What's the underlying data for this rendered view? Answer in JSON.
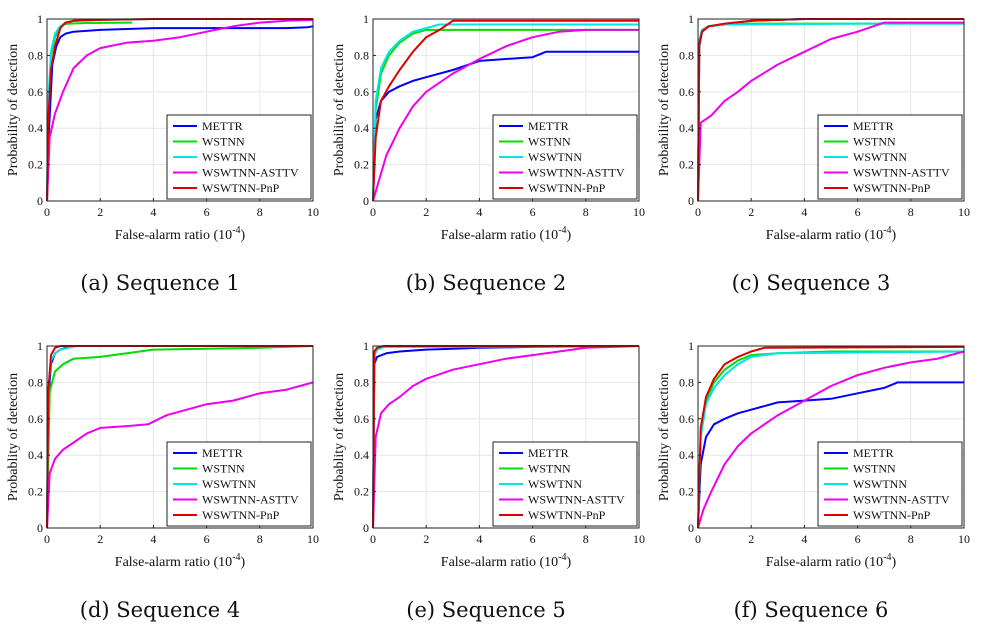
{
  "chart_data": [
    {
      "type": "line",
      "caption": "(a) Sequence 1",
      "xlabel": "False-alarm ratio (10",
      "xlabel_sup": "-4",
      "xlabel_end": ")",
      "ylabel": "Probability of detection",
      "xlim": [
        0,
        10
      ],
      "ylim": [
        0,
        1
      ],
      "xticks": [
        "0",
        "2",
        "4",
        "6",
        "8",
        "10"
      ],
      "yticks": [
        "0",
        "0.2",
        "0.4",
        "0.6",
        "0.8",
        "1"
      ],
      "grid": true,
      "legend": "bottom-right",
      "series": [
        {
          "name": "METTR",
          "color": "#0000ff",
          "x": [
            0,
            0.08,
            0.2,
            0.35,
            0.5,
            0.7,
            1,
            2,
            3,
            4,
            6,
            8,
            9,
            9.8,
            10
          ],
          "y": [
            0,
            0.4,
            0.75,
            0.85,
            0.9,
            0.92,
            0.93,
            0.94,
            0.945,
            0.95,
            0.95,
            0.95,
            0.95,
            0.955,
            0.96
          ]
        },
        {
          "name": "WSTNN",
          "color": "#00dd00",
          "x": [
            0,
            0.05,
            0.15,
            0.3,
            0.45,
            0.6,
            0.8,
            1.5,
            3.2
          ],
          "y": [
            0,
            0.5,
            0.8,
            0.9,
            0.95,
            0.97,
            0.975,
            0.978,
            0.98
          ]
        },
        {
          "name": "WSWTNN",
          "color": "#00e5e5",
          "x": [
            0,
            0.05,
            0.15,
            0.3,
            0.5,
            0.7,
            1,
            2,
            4,
            6,
            10
          ],
          "y": [
            0,
            0.55,
            0.82,
            0.92,
            0.96,
            0.98,
            0.99,
            0.995,
            1,
            1,
            1
          ]
        },
        {
          "name": "WSWTNN-ASTTV",
          "color": "#ee00ee",
          "x": [
            0,
            0.1,
            0.3,
            0.6,
            1,
            1.5,
            2,
            3,
            4,
            5,
            6,
            7,
            8,
            9,
            10
          ],
          "y": [
            0,
            0.35,
            0.48,
            0.6,
            0.73,
            0.8,
            0.84,
            0.87,
            0.88,
            0.9,
            0.93,
            0.96,
            0.98,
            0.99,
            0.995
          ]
        },
        {
          "name": "WSWTNN-PnP",
          "color": "#dd0000",
          "x": [
            0,
            0.05,
            0.15,
            0.3,
            0.5,
            0.7,
            1,
            2,
            4,
            10
          ],
          "y": [
            0,
            0.45,
            0.72,
            0.85,
            0.95,
            0.98,
            0.99,
            0.995,
            1,
            1
          ]
        }
      ]
    },
    {
      "type": "line",
      "caption": "(b) Sequence 2",
      "xlabel": "False-alarm ratio (10",
      "xlabel_sup": "-4",
      "xlabel_end": ")",
      "ylabel": "Probability of detection",
      "xlim": [
        0,
        10
      ],
      "ylim": [
        0,
        1
      ],
      "xticks": [
        "0",
        "2",
        "4",
        "6",
        "8",
        "10"
      ],
      "yticks": [
        "0",
        "0.2",
        "0.4",
        "0.6",
        "0.8",
        "1"
      ],
      "grid": true,
      "legend": "bottom-right",
      "series": [
        {
          "name": "METTR",
          "color": "#0000ff",
          "x": [
            0,
            0.1,
            0.3,
            0.6,
            1,
            1.5,
            2,
            3,
            4,
            5,
            6,
            6.5,
            10
          ],
          "y": [
            0,
            0.45,
            0.55,
            0.6,
            0.63,
            0.66,
            0.68,
            0.72,
            0.77,
            0.78,
            0.79,
            0.82,
            0.82
          ]
        },
        {
          "name": "WSTNN",
          "color": "#00dd00",
          "x": [
            0,
            0.1,
            0.3,
            0.6,
            1,
            1.5,
            2,
            10
          ],
          "y": [
            0,
            0.5,
            0.7,
            0.8,
            0.87,
            0.92,
            0.94,
            0.94
          ]
        },
        {
          "name": "WSWTNN",
          "color": "#00e5e5",
          "x": [
            0,
            0.1,
            0.3,
            0.6,
            1,
            1.5,
            2,
            2.5,
            10
          ],
          "y": [
            0,
            0.55,
            0.73,
            0.82,
            0.88,
            0.93,
            0.95,
            0.97,
            0.97
          ]
        },
        {
          "name": "WSWTNN-ASTTV",
          "color": "#ee00ee",
          "x": [
            0,
            0.2,
            0.5,
            1,
            1.5,
            2,
            3,
            4,
            5,
            6,
            7,
            8,
            10
          ],
          "y": [
            0,
            0.1,
            0.25,
            0.4,
            0.52,
            0.6,
            0.7,
            0.78,
            0.85,
            0.9,
            0.93,
            0.94,
            0.94
          ]
        },
        {
          "name": "WSWTNN-PnP",
          "color": "#dd0000",
          "x": [
            0,
            0.1,
            0.3,
            0.6,
            1,
            1.5,
            2,
            2.5,
            3,
            10
          ],
          "y": [
            0,
            0.35,
            0.55,
            0.63,
            0.72,
            0.82,
            0.9,
            0.94,
            0.99,
            0.99
          ]
        }
      ]
    },
    {
      "type": "line",
      "caption": "(c) Sequence 3",
      "xlabel": "False-alarm ratio (10",
      "xlabel_sup": "-4",
      "xlabel_end": ")",
      "ylabel": "Probability of detection",
      "xlim": [
        0,
        10
      ],
      "ylim": [
        0,
        1
      ],
      "xticks": [
        "0",
        "2",
        "4",
        "6",
        "8",
        "10"
      ],
      "yticks": [
        "0",
        "0.2",
        "0.4",
        "0.6",
        "0.8",
        "1"
      ],
      "grid": true,
      "legend": "bottom-right",
      "series": [
        {
          "name": "METTR",
          "color": "#0000ff",
          "x": [
            0,
            0.05,
            0.15,
            0.4,
            1,
            2,
            4,
            10
          ],
          "y": [
            0,
            0.85,
            0.93,
            0.96,
            0.97,
            0.99,
            1,
            1
          ]
        },
        {
          "name": "WSTNN",
          "color": "#00dd00",
          "x": [
            0,
            0.05,
            0.15,
            0.4,
            1,
            2,
            10
          ],
          "y": [
            0,
            0.88,
            0.94,
            0.96,
            0.97,
            0.975,
            0.975
          ]
        },
        {
          "name": "WSWTNN",
          "color": "#00e5e5",
          "x": [
            0,
            0.05,
            0.15,
            0.4,
            1,
            2,
            6,
            10
          ],
          "y": [
            0,
            0.88,
            0.94,
            0.96,
            0.97,
            0.97,
            0.975,
            0.975
          ]
        },
        {
          "name": "WSWTNN-ASTTV",
          "color": "#ee00ee",
          "x": [
            0,
            0.1,
            0.5,
            1,
            1.5,
            2,
            3,
            4,
            5,
            6,
            7,
            10
          ],
          "y": [
            0,
            0.43,
            0.47,
            0.55,
            0.6,
            0.66,
            0.75,
            0.82,
            0.89,
            0.93,
            0.98,
            0.98
          ]
        },
        {
          "name": "WSWTNN-PnP",
          "color": "#dd0000",
          "x": [
            0,
            0.05,
            0.15,
            0.4,
            1,
            2,
            4,
            10
          ],
          "y": [
            0,
            0.86,
            0.93,
            0.96,
            0.975,
            0.99,
            1,
            1
          ]
        }
      ]
    },
    {
      "type": "line",
      "caption": "(d) Sequence 4",
      "xlabel": "False-alarm ratio (10",
      "xlabel_sup": "-4",
      "xlabel_end": ")",
      "ylabel": "Probablity of detection",
      "xlim": [
        0,
        10
      ],
      "ylim": [
        0,
        1
      ],
      "xticks": [
        "0",
        "2",
        "4",
        "6",
        "8",
        "10"
      ],
      "yticks": [
        "0",
        "0.2",
        "0.4",
        "0.6",
        "0.8",
        "1"
      ],
      "grid": true,
      "legend": "bottom-right",
      "series": [
        {
          "name": "METTR",
          "color": "#0000ff",
          "x": [
            0,
            0.05,
            0.15,
            0.3,
            0.5,
            0.7,
            1,
            10
          ],
          "y": [
            0,
            0.7,
            0.9,
            0.96,
            0.98,
            0.99,
            1,
            1
          ]
        },
        {
          "name": "WSTNN",
          "color": "#00dd00",
          "x": [
            0,
            0.1,
            0.3,
            0.6,
            1,
            2,
            3,
            4,
            6,
            8,
            10
          ],
          "y": [
            0,
            0.75,
            0.86,
            0.9,
            0.93,
            0.94,
            0.96,
            0.98,
            0.985,
            0.99,
            1
          ]
        },
        {
          "name": "WSWTNN",
          "color": "#00e5e5",
          "x": [
            0,
            0.05,
            0.15,
            0.3,
            0.5,
            0.8,
            1.1
          ],
          "y": [
            0,
            0.75,
            0.92,
            0.96,
            0.98,
            0.99,
            1
          ]
        },
        {
          "name": "WSWTNN-ASTTV",
          "color": "#ee00ee",
          "x": [
            0,
            0.1,
            0.3,
            0.6,
            1,
            1.5,
            2,
            3,
            3.8,
            4.5,
            6,
            7,
            8,
            9,
            10
          ],
          "y": [
            0,
            0.3,
            0.38,
            0.43,
            0.47,
            0.52,
            0.55,
            0.56,
            0.57,
            0.62,
            0.68,
            0.7,
            0.74,
            0.76,
            0.8
          ]
        },
        {
          "name": "WSWTNN-PnP",
          "color": "#dd0000",
          "x": [
            0,
            0.05,
            0.15,
            0.3,
            0.5,
            1,
            10
          ],
          "y": [
            0,
            0.75,
            0.95,
            0.99,
            1,
            1,
            1
          ]
        }
      ]
    },
    {
      "type": "line",
      "caption": "(e) Sequence 5",
      "xlabel": "False-alarm ratio (10",
      "xlabel_sup": "-4",
      "xlabel_end": ")",
      "ylabel": "Probablity of detection",
      "xlim": [
        0,
        10
      ],
      "ylim": [
        0,
        1
      ],
      "xticks": [
        "0",
        "2",
        "4",
        "6",
        "8",
        "10"
      ],
      "yticks": [
        "0",
        "0.2",
        "0.4",
        "0.6",
        "0.8",
        "1"
      ],
      "grid": true,
      "legend": "bottom-right",
      "series": [
        {
          "name": "METTR",
          "color": "#0000ff",
          "x": [
            0,
            0.05,
            0.15,
            0.5,
            1,
            2,
            3,
            4,
            6,
            10
          ],
          "y": [
            0,
            0.9,
            0.94,
            0.96,
            0.97,
            0.98,
            0.985,
            0.99,
            0.995,
            1
          ]
        },
        {
          "name": "WSTNN",
          "color": "#00dd00",
          "x": [
            0,
            0.05,
            0.15,
            0.4,
            10
          ],
          "y": [
            0,
            0.95,
            0.98,
            0.995,
            1
          ]
        },
        {
          "name": "WSWTNN",
          "color": "#00e5e5",
          "x": [
            0,
            0.05,
            0.15,
            0.4,
            10
          ],
          "y": [
            0,
            0.95,
            0.98,
            0.995,
            1
          ]
        },
        {
          "name": "WSWTNN-ASTTV",
          "color": "#ee00ee",
          "x": [
            0,
            0.1,
            0.3,
            0.6,
            1,
            1.5,
            2,
            3,
            4,
            5,
            6,
            7,
            8,
            10
          ],
          "y": [
            0,
            0.5,
            0.63,
            0.68,
            0.72,
            0.78,
            0.82,
            0.87,
            0.9,
            0.93,
            0.95,
            0.97,
            0.99,
            1
          ]
        },
        {
          "name": "WSWTNN-PnP",
          "color": "#dd0000",
          "x": [
            0,
            0.05,
            0.15,
            0.4,
            10
          ],
          "y": [
            0,
            0.97,
            0.99,
            1,
            1
          ]
        }
      ]
    },
    {
      "type": "line",
      "caption": "(f) Sequence 6",
      "xlabel": "False-alarm ratio (10",
      "xlabel_sup": "-4",
      "xlabel_end": ")",
      "ylabel": "Probablity of detection",
      "xlim": [
        0,
        10
      ],
      "ylim": [
        0,
        1
      ],
      "xticks": [
        "0",
        "2",
        "4",
        "6",
        "8",
        "10"
      ],
      "yticks": [
        "0",
        "0.2",
        "0.4",
        "0.6",
        "0.8",
        "1"
      ],
      "grid": true,
      "legend": "bottom-right",
      "series": [
        {
          "name": "METTR",
          "color": "#0000ff",
          "x": [
            0,
            0.1,
            0.3,
            0.6,
            1,
            1.5,
            2,
            3,
            4,
            5,
            6,
            7,
            7.5,
            10
          ],
          "y": [
            0,
            0.35,
            0.5,
            0.57,
            0.6,
            0.63,
            0.65,
            0.69,
            0.7,
            0.71,
            0.74,
            0.77,
            0.8,
            0.8
          ]
        },
        {
          "name": "WSTNN",
          "color": "#00dd00",
          "x": [
            0,
            0.1,
            0.3,
            0.6,
            1,
            1.5,
            2,
            3,
            5,
            10
          ],
          "y": [
            0,
            0.5,
            0.7,
            0.8,
            0.87,
            0.92,
            0.95,
            0.96,
            0.97,
            0.97
          ]
        },
        {
          "name": "WSWTNN",
          "color": "#00e5e5",
          "x": [
            0,
            0.1,
            0.3,
            0.6,
            1,
            1.5,
            2,
            3,
            10
          ],
          "y": [
            0,
            0.5,
            0.68,
            0.77,
            0.84,
            0.9,
            0.94,
            0.96,
            0.97
          ]
        },
        {
          "name": "WSWTNN-ASTTV",
          "color": "#ee00ee",
          "x": [
            0,
            0.2,
            0.5,
            1,
            1.5,
            2,
            3,
            4,
            5,
            6,
            7,
            8,
            9,
            10
          ],
          "y": [
            0,
            0.1,
            0.2,
            0.35,
            0.45,
            0.52,
            0.62,
            0.7,
            0.78,
            0.84,
            0.88,
            0.91,
            0.93,
            0.97
          ]
        },
        {
          "name": "WSWTNN-PnP",
          "color": "#dd0000",
          "x": [
            0,
            0.1,
            0.3,
            0.6,
            1,
            1.5,
            2,
            2.5,
            10
          ],
          "y": [
            0,
            0.55,
            0.72,
            0.82,
            0.9,
            0.94,
            0.97,
            0.99,
            0.995
          ]
        }
      ]
    }
  ]
}
